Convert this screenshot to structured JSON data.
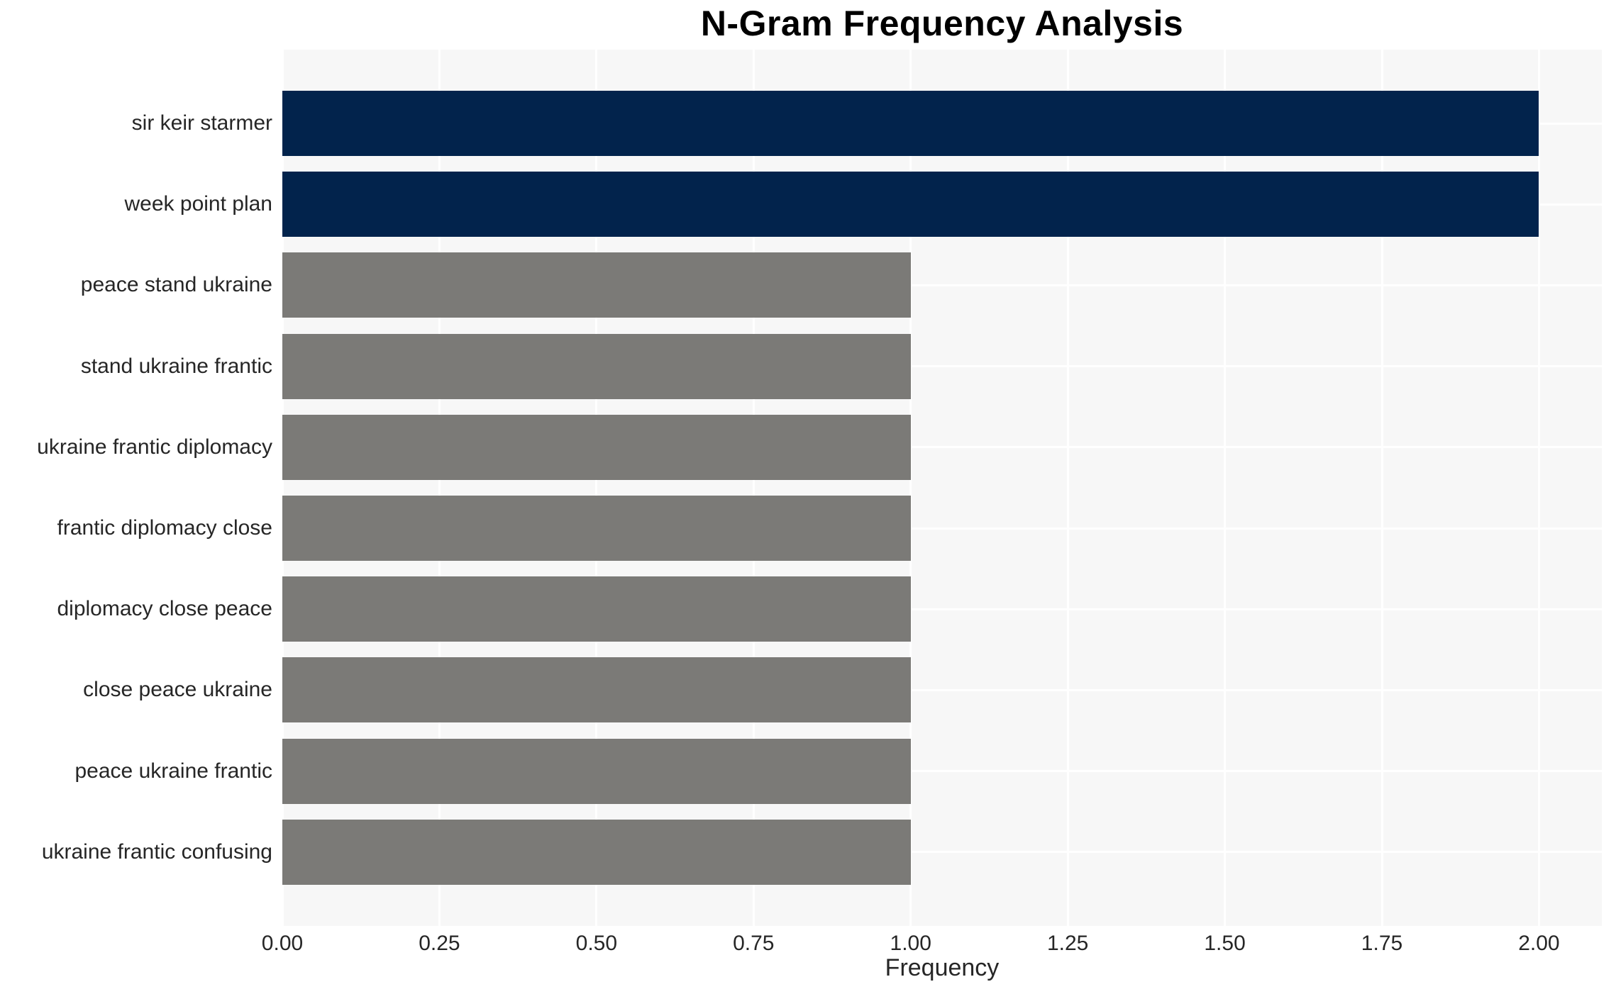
{
  "chart_data": {
    "type": "bar",
    "orientation": "horizontal",
    "title": "N-Gram Frequency Analysis",
    "xlabel": "Frequency",
    "ylabel": "",
    "categories": [
      "sir keir starmer",
      "week point plan",
      "peace stand ukraine",
      "stand ukraine frantic",
      "ukraine frantic diplomacy",
      "frantic diplomacy close",
      "diplomacy close peace",
      "close peace ukraine",
      "peace ukraine frantic",
      "ukraine frantic confusing"
    ],
    "values": [
      2,
      2,
      1,
      1,
      1,
      1,
      1,
      1,
      1,
      1
    ],
    "xlim": [
      0,
      2.1
    ],
    "xtick_values": [
      0,
      0.25,
      0.5,
      0.75,
      1.0,
      1.25,
      1.5,
      1.75,
      2.0
    ],
    "xtick_labels": [
      "0.00",
      "0.25",
      "0.50",
      "0.75",
      "1.00",
      "1.25",
      "1.50",
      "1.75",
      "2.00"
    ],
    "grid": "white vertical lines at x ticks and horizontal lines at category centers, drawn under bars",
    "legend_position": "none",
    "bar_colors": [
      "#02234c",
      "#02234c",
      "#7b7a77",
      "#7b7a77",
      "#7b7a77",
      "#7b7a77",
      "#7b7a77",
      "#7b7a77",
      "#7b7a77",
      "#7b7a77"
    ],
    "colors": {
      "highlight_bar": "#02234c",
      "default_bar": "#7b7a77",
      "panel_background": "#f7f7f7",
      "grid_line": "#ffffff",
      "tick_text": "#262626",
      "title_text": "#000000"
    }
  }
}
